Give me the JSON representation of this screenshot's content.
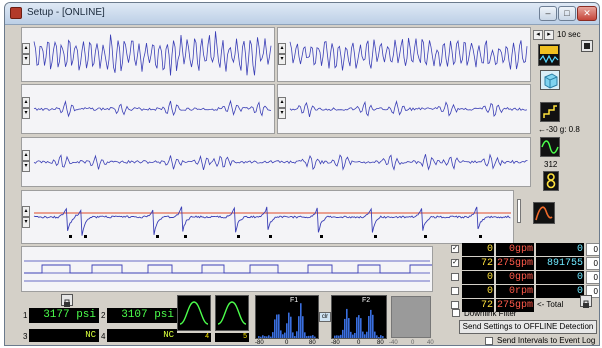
{
  "window": {
    "title": "Setup - [ONLINE]",
    "minimize_glyph": "–",
    "maximize_glyph": "□",
    "close_glyph": "✕"
  },
  "colors": {
    "trace": "#3b3fb6",
    "threshold": "#e04a2a",
    "panel": "#f4f4f7"
  },
  "time_nav": {
    "left": "◂",
    "right": "▸",
    "window_label": "10 sec"
  },
  "right_panel": {
    "filter_label": "←-30  g: 0.8",
    "count_label": "312",
    "icons": [
      "square-stop-icon",
      "wave-select-icon",
      "cube-icon",
      "ladder-icon",
      "sine-icon",
      "digit-eight-icon",
      "curve-icon"
    ]
  },
  "spin_glyphs": {
    "up": "▴",
    "down": "▾"
  },
  "flow_rows": [
    {
      "checked": "✓",
      "a": "0",
      "b": "0gpm",
      "c": "0",
      "d": "0"
    },
    {
      "checked": "✓",
      "a": "72",
      "b": "275gpm",
      "c": "891755",
      "d": "0"
    },
    {
      "checked": "",
      "a": "0",
      "b": "0gpm",
      "c": "0",
      "d": "0"
    },
    {
      "checked": "",
      "a": "0",
      "b": "0rpm",
      "c": "0",
      "d": "0"
    },
    {
      "checked": "",
      "a": "72",
      "b": "275gpm",
      "c": "<- Total",
      "d": ""
    }
  ],
  "pressures": [
    {
      "id": "1",
      "value": "3177 psi"
    },
    {
      "id": "2",
      "value": "3107 psi"
    },
    {
      "id": "3",
      "value": "NC"
    },
    {
      "id": "4",
      "value": "NC"
    }
  ],
  "mini_counters": [
    "4",
    "5"
  ],
  "histograms": {
    "f1": {
      "label": "F1",
      "ticks": [
        "-80",
        "0",
        "80"
      ]
    },
    "f2": {
      "label": "F2",
      "ticks": [
        "-80",
        "0",
        "80"
      ]
    },
    "clr_label": "clr",
    "empty_ticks": [
      "-40",
      "0",
      "40"
    ]
  },
  "buttons": {
    "downlink_filter": "Downlink Filter",
    "send_settings": "Send Settings to OFFLINE Detection",
    "send_intervals": "Send Intervals to Event Log"
  }
}
